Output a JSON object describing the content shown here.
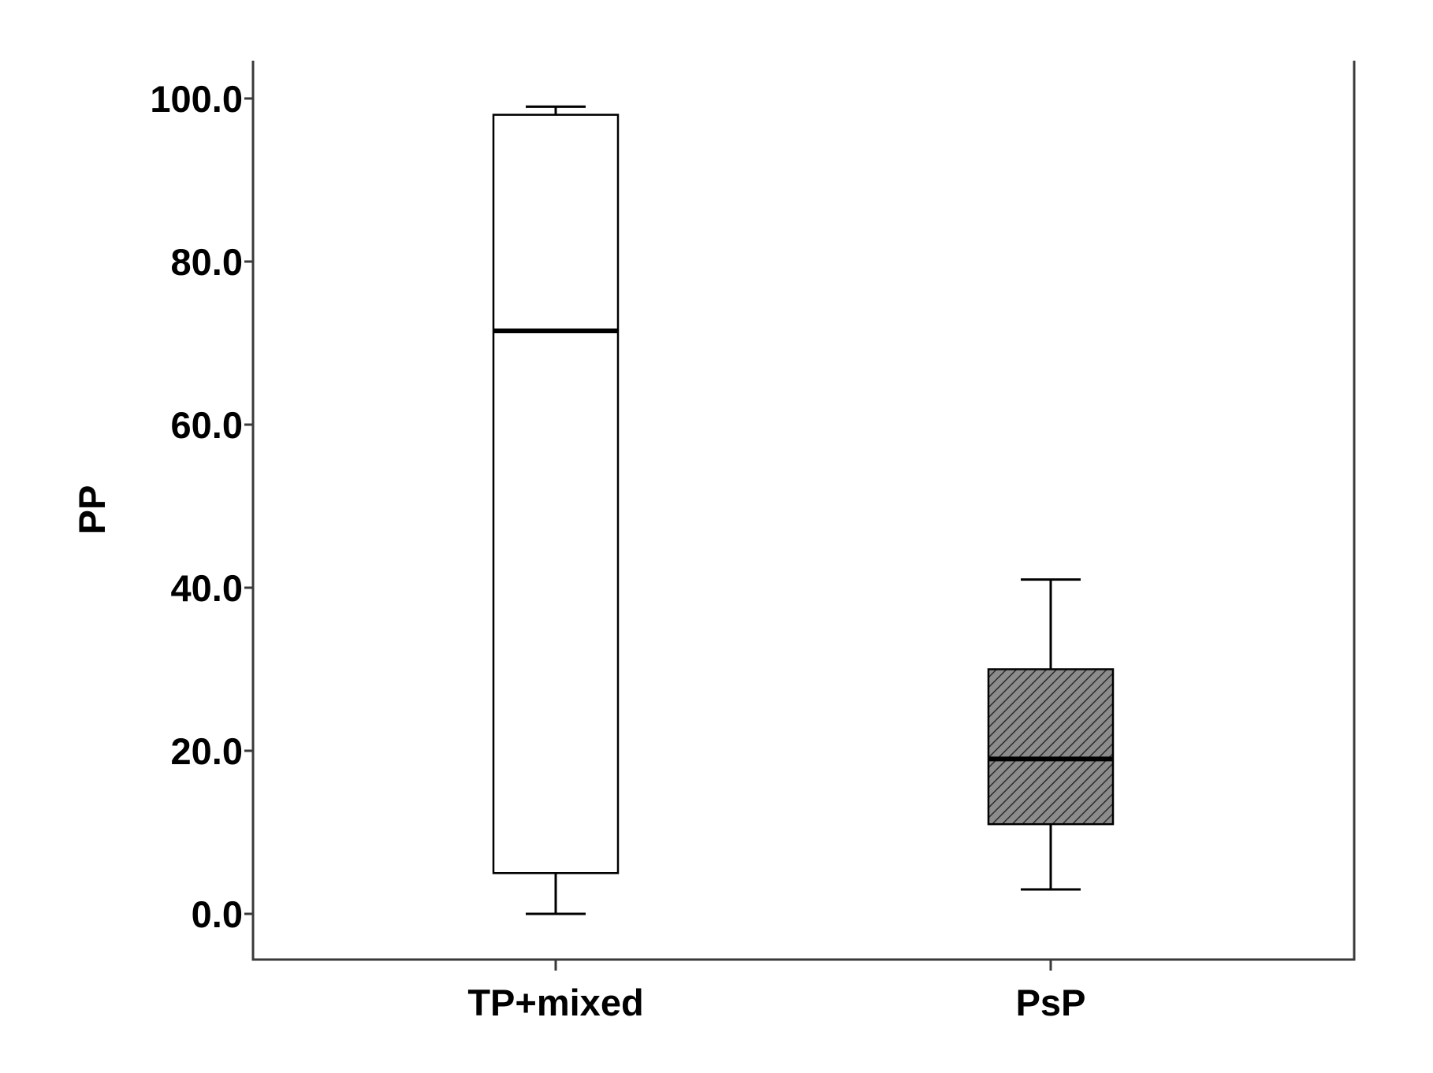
{
  "chart_data": {
    "type": "boxplot",
    "title": "",
    "xlabel": "",
    "ylabel": "PP",
    "ylim": [
      -5.5,
      104.5
    ],
    "y_ticks": [
      0,
      20,
      40,
      60,
      80,
      100
    ],
    "y_tick_labels": [
      "0.0",
      "20.0",
      "40.0",
      "60.0",
      "80.0",
      "100.0"
    ],
    "grid": false,
    "legend": "none",
    "categories": [
      "TP+mixed",
      "PsP"
    ],
    "series": [
      {
        "category": "TP+mixed",
        "min": 0,
        "q1": 5,
        "median": 71.5,
        "q3": 98,
        "max": 99,
        "fill": "#ffffff",
        "pattern": "none"
      },
      {
        "category": "PsP",
        "min": 3,
        "q1": 11,
        "median": 19,
        "q3": 30,
        "max": 41,
        "fill": "#8c8c8c",
        "pattern": "diagonal-hatch"
      }
    ],
    "colors": {
      "axis": "#3a3a3a",
      "box_stroke": "#000000",
      "median": "#000000",
      "hatch_line": "#2b2b2b"
    }
  }
}
